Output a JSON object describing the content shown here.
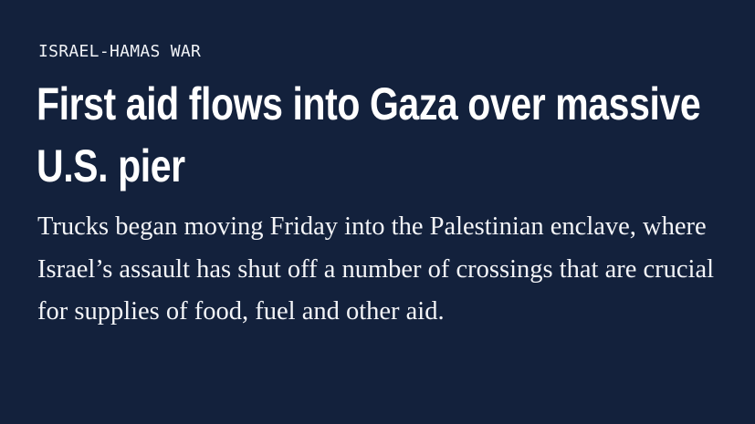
{
  "article": {
    "kicker": "ISRAEL-HAMAS WAR",
    "headline": "First aid flows into Gaza over massive U.S. pier",
    "dek": "Trucks began moving Friday into the Palestinian enclave, where Israel’s assault has shut off a number of crossings that are crucial for supplies of food, fuel and other aid."
  },
  "colors": {
    "background": "#13213c",
    "text": "#ffffff"
  }
}
